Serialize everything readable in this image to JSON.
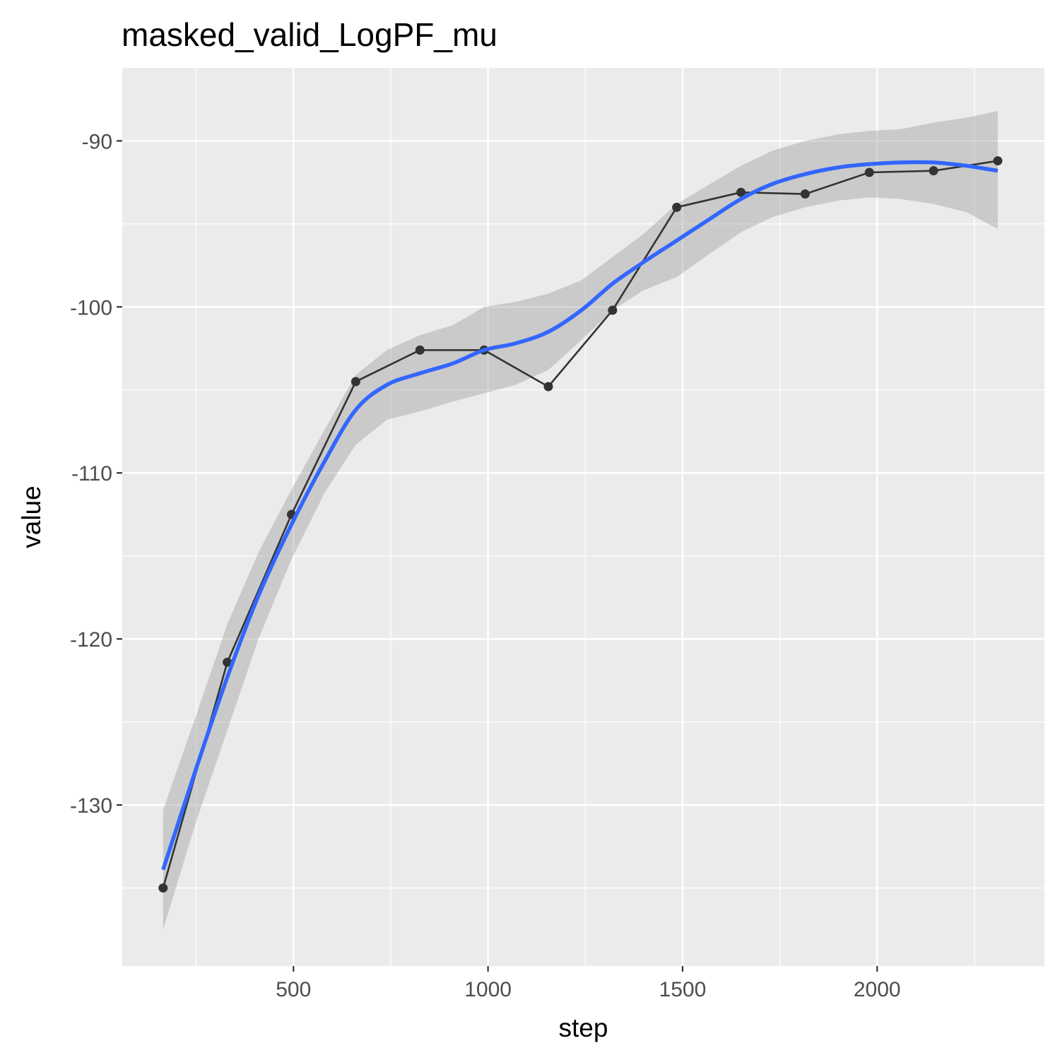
{
  "chart_data": {
    "type": "line",
    "title": "masked_valid_LogPF_mu",
    "xlabel": "step",
    "ylabel": "value",
    "xlim": [
      60,
      2430
    ],
    "ylim": [
      -139.7,
      -85.6
    ],
    "x_ticks": [
      500,
      1000,
      1500,
      2000
    ],
    "x_tick_labels": [
      "500",
      "1000",
      "1500",
      "2000"
    ],
    "x_minor_ticks": [
      250,
      750,
      1250,
      1750,
      2250
    ],
    "y_ticks": [
      -130,
      -120,
      -110,
      -100,
      -90
    ],
    "y_tick_labels": [
      "-130",
      "-120",
      "-110",
      "-100",
      "-90"
    ],
    "y_minor_ticks": [
      -135,
      -125,
      -115,
      -105,
      -95
    ],
    "grid": true,
    "legend": "none",
    "series": [
      {
        "kind": "points+line",
        "color": "#333333",
        "x": [
          165,
          330,
          495,
          660,
          825,
          990,
          1155,
          1320,
          1485,
          1650,
          1815,
          1980,
          2145,
          2310
        ],
        "y": [
          -135.0,
          -121.4,
          -112.5,
          -104.5,
          -102.6,
          -102.6,
          -104.8,
          -100.2,
          -94.0,
          -93.1,
          -93.2,
          -91.9,
          -91.8,
          -91.2
        ]
      },
      {
        "kind": "smooth",
        "color": "#3366FF",
        "band_color": "#999999",
        "x": [
          165,
          250,
          330,
          410,
          495,
          580,
          660,
          740,
          825,
          910,
          990,
          1070,
          1155,
          1240,
          1320,
          1400,
          1485,
          1570,
          1650,
          1730,
          1815,
          1900,
          1980,
          2060,
          2145,
          2230,
          2310
        ],
        "y": [
          -133.9,
          -127.8,
          -122.3,
          -117.4,
          -113.1,
          -109.3,
          -106.2,
          -104.7,
          -104.0,
          -103.4,
          -102.6,
          -102.2,
          -101.5,
          -100.2,
          -98.6,
          -97.3,
          -96.0,
          -94.7,
          -93.5,
          -92.6,
          -92.0,
          -91.6,
          -91.4,
          -91.3,
          -91.3,
          -91.5,
          -91.8
        ],
        "lower": [
          -137.5,
          -131.0,
          -125.5,
          -120.0,
          -115.2,
          -111.2,
          -108.3,
          -106.8,
          -106.3,
          -105.7,
          -105.2,
          -104.7,
          -103.8,
          -102.0,
          -100.2,
          -99.0,
          -98.2,
          -96.8,
          -95.5,
          -94.6,
          -94.0,
          -93.6,
          -93.4,
          -93.5,
          -93.8,
          -94.3,
          -95.3
        ],
        "upper": [
          -130.3,
          -124.6,
          -119.1,
          -114.8,
          -111.0,
          -107.4,
          -104.1,
          -102.6,
          -101.7,
          -101.1,
          -100.0,
          -99.7,
          -99.2,
          -98.4,
          -97.0,
          -95.6,
          -93.8,
          -92.6,
          -91.5,
          -90.6,
          -90.0,
          -89.6,
          -89.4,
          -89.3,
          -88.9,
          -88.6,
          -88.2
        ]
      }
    ]
  }
}
